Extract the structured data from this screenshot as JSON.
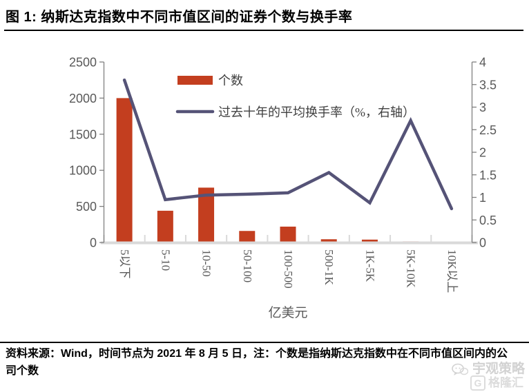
{
  "header": {
    "title": "图 1: 纳斯达克指数中不同市值区间的证券个数与换手率"
  },
  "chart_data": {
    "type": "bar",
    "subtype": "bar+line dual axis",
    "categories": [
      "5以下",
      "5-10",
      "10-50",
      "50-100",
      "100-500",
      "500-1K",
      "1K-5K",
      "5K-10K",
      "10K以上"
    ],
    "series": [
      {
        "name": "个数",
        "type": "bar",
        "axis": "left",
        "color": "#C33E1F",
        "values": [
          2000,
          440,
          760,
          160,
          220,
          45,
          40,
          15,
          10
        ]
      },
      {
        "name": "过去十年的平均换手率（%，右轴）",
        "type": "line",
        "axis": "right",
        "color": "#555377",
        "values": [
          3.6,
          0.95,
          1.05,
          1.07,
          1.1,
          1.55,
          0.88,
          2.7,
          0.75
        ]
      }
    ],
    "left_axis": {
      "min": 0,
      "max": 2500,
      "step": 500,
      "tick_labels": [
        "0",
        "500",
        "1000",
        "1500",
        "2000",
        "2500"
      ]
    },
    "right_axis": {
      "min": 0,
      "max": 4,
      "step": 0.5,
      "tick_labels": [
        "0",
        "0.5",
        "1",
        "1.5",
        "2",
        "2.5",
        "3",
        "3.5",
        "4"
      ]
    },
    "xlabel": "亿美元",
    "ylabel": "",
    "title": "",
    "grid": false,
    "legend_position": "inside-top-center",
    "colors": {
      "tick_label": "#595959",
      "axis_line": "#7f7f7f",
      "baseline_band": "#d9d9d9",
      "legend_text": "#404040"
    }
  },
  "footer": {
    "source_note": "资料来源：Wind，时间节点为 2021 年 8 月 5 日，注：个数是指纳斯达克指数中在不同市值区间内的公司个数",
    "watermark_name": "宇观策略",
    "watermark_logo_letter": "G",
    "watermark_logo_text": "格隆汇"
  }
}
